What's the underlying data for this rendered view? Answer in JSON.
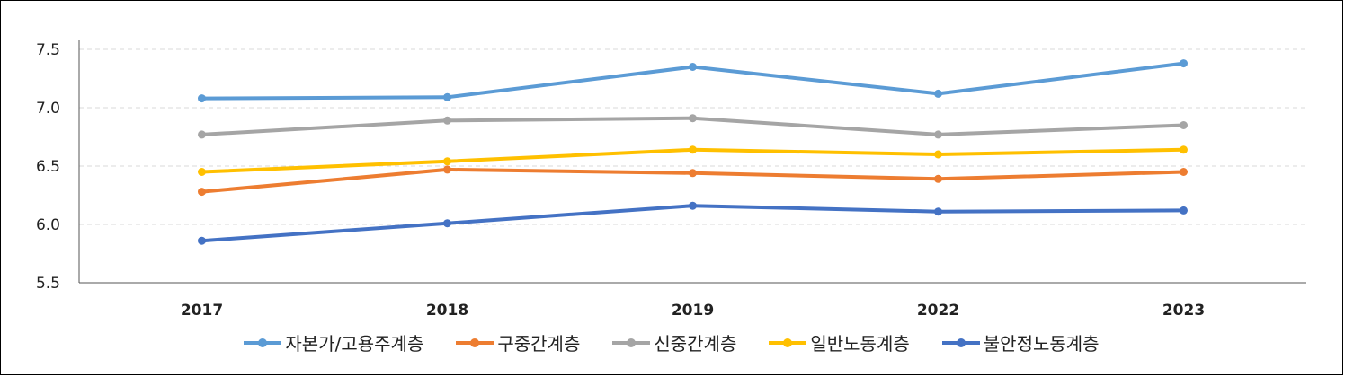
{
  "chart_data": {
    "type": "line",
    "title": "",
    "xlabel": "",
    "ylabel": "",
    "categories": [
      "2017",
      "2018",
      "2019",
      "2022",
      "2023"
    ],
    "ylim": [
      5.5,
      7.5
    ],
    "yticks": [
      "5.5",
      "6.0",
      "6.5",
      "7.0",
      "7.5"
    ],
    "grid": true,
    "legend_position": "bottom",
    "series": [
      {
        "name": "자본가/고용주계층",
        "color": "#5B9BD5",
        "values": [
          7.08,
          7.09,
          7.35,
          7.12,
          7.38
        ]
      },
      {
        "name": "구중간계층",
        "color": "#ED7D31",
        "values": [
          6.28,
          6.47,
          6.44,
          6.39,
          6.45
        ]
      },
      {
        "name": "신중간계층",
        "color": "#A5A5A5",
        "values": [
          6.77,
          6.89,
          6.91,
          6.77,
          6.85
        ]
      },
      {
        "name": "일반노동계층",
        "color": "#FFC000",
        "values": [
          6.45,
          6.54,
          6.64,
          6.6,
          6.64
        ]
      },
      {
        "name": "불안정노동계층",
        "color": "#4472C4",
        "values": [
          5.86,
          6.01,
          6.16,
          6.11,
          6.12
        ]
      }
    ]
  }
}
